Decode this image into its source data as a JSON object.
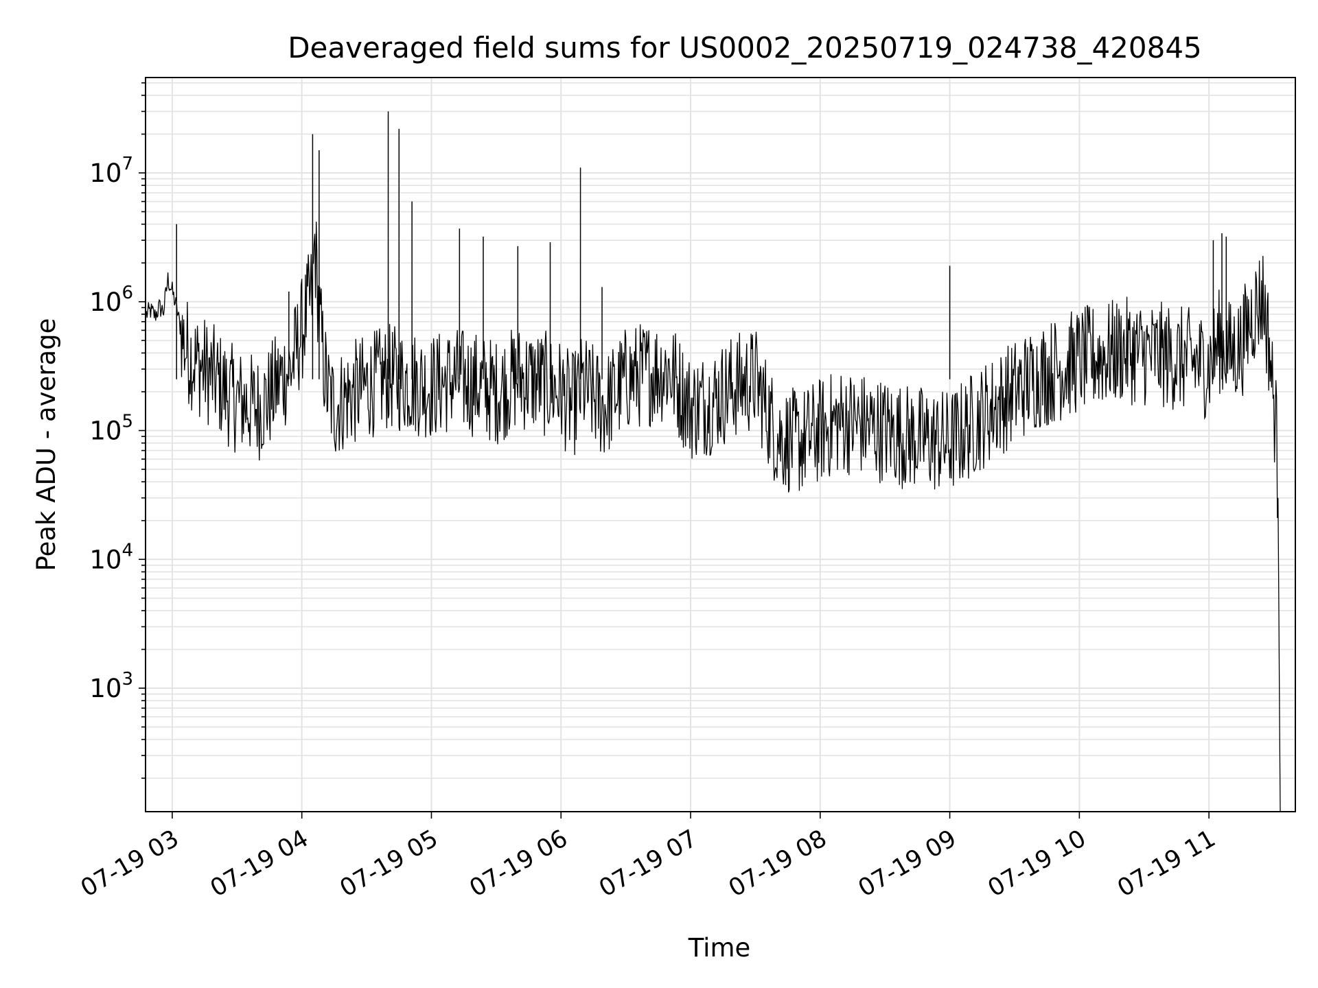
{
  "chart_data": {
    "type": "line",
    "title": "Deaveraged field sums for US0002_20250719_024738_420845",
    "xlabel": "Time",
    "ylabel": "Peak ADU - average",
    "y_scale": "log",
    "xlim": [
      "2025-07-19 02:47:38",
      "2025-07-19 11:40"
    ],
    "ylim": [
      110,
      55000000.0
    ],
    "grid": "major and minor",
    "line_color": "#000000",
    "x_tick_labels": [
      "07-19 03",
      "07-19 04",
      "07-19 05",
      "07-19 06",
      "07-19 07",
      "07-19 08",
      "07-19 09",
      "07-19 10",
      "07-19 11"
    ],
    "y_tick_values": [
      1000,
      10000,
      100000,
      1000000,
      10000000
    ],
    "y_tick_labels": [
      {
        "base": "10",
        "exp": "3"
      },
      {
        "base": "10",
        "exp": "4"
      },
      {
        "base": "10",
        "exp": "5"
      },
      {
        "base": "10",
        "exp": "6"
      },
      {
        "base": "10",
        "exp": "7"
      }
    ],
    "series": [
      {
        "x": [
          "02:48",
          "02:50",
          "02:52",
          "02:54",
          "02:56",
          "02:58",
          "03:00",
          "03:02",
          "03:04",
          "03:06",
          "03:10",
          "03:15",
          "03:20",
          "03:25",
          "03:30",
          "03:35",
          "03:40",
          "03:45",
          "03:50",
          "03:55",
          "04:00",
          "04:03",
          "04:05",
          "04:06",
          "04:07",
          "04:08",
          "04:10",
          "04:12",
          "04:15",
          "04:20",
          "04:30",
          "04:40",
          "04:50",
          "05:00",
          "05:10",
          "05:20",
          "05:30",
          "05:40",
          "05:50",
          "06:00",
          "06:05",
          "06:10",
          "06:20",
          "06:30",
          "06:40",
          "06:50",
          "07:00",
          "07:10",
          "07:20",
          "07:30",
          "07:40",
          "07:50",
          "08:00",
          "08:10",
          "08:20",
          "08:30",
          "08:40",
          "08:50",
          "09:00",
          "09:10",
          "09:20",
          "09:30",
          "09:40",
          "09:50",
          "10:00",
          "10:10",
          "10:20",
          "10:30",
          "10:40",
          "10:50",
          "11:00",
          "11:05",
          "11:10",
          "11:15",
          "11:20",
          "11:25",
          "11:28",
          "11:30",
          "11:31",
          "11:32",
          "11:33"
        ],
        "y": [
          800000,
          850000,
          780000,
          900000,
          850000,
          1500000,
          1200000,
          900000,
          600000,
          450000,
          350000,
          300000,
          250000,
          200000,
          170000,
          160000,
          150000,
          180000,
          250000,
          300000,
          600000,
          900000,
          1200000,
          3000000,
          1500000,
          800000,
          350000,
          200000,
          150000,
          180000,
          220000,
          260000,
          240000,
          220000,
          250000,
          230000,
          200000,
          260000,
          240000,
          200000,
          150000,
          220000,
          150000,
          250000,
          280000,
          300000,
          150000,
          170000,
          220000,
          250000,
          90000,
          80000,
          100000,
          120000,
          110000,
          100000,
          90000,
          85000,
          80000,
          110000,
          150000,
          200000,
          260000,
          300000,
          350000,
          380000,
          420000,
          400000,
          380000,
          350000,
          320000,
          500000,
          400000,
          450000,
          800000,
          1100000,
          450000,
          160000,
          120000,
          30000,
          110
        ]
      }
    ],
    "spikes": [
      {
        "x": "04:05",
        "y": 20000000
      },
      {
        "x": "04:08",
        "y": 15000000
      },
      {
        "x": "04:40",
        "y": 30000000
      },
      {
        "x": "04:45",
        "y": 22000000
      },
      {
        "x": "04:51",
        "y": 6000000
      },
      {
        "x": "05:13",
        "y": 3700000
      },
      {
        "x": "05:24",
        "y": 3200000
      },
      {
        "x": "05:40",
        "y": 2700000
      },
      {
        "x": "05:55",
        "y": 2900000
      },
      {
        "x": "06:09",
        "y": 11000000
      },
      {
        "x": "06:19",
        "y": 1300000
      },
      {
        "x": "09:00",
        "y": 1900000
      },
      {
        "x": "11:02",
        "y": 3000000
      },
      {
        "x": "11:06",
        "y": 3400000
      },
      {
        "x": "11:08",
        "y": 3200000
      },
      {
        "x": "03:02",
        "y": 4000000
      },
      {
        "x": "03:54",
        "y": 1200000
      }
    ]
  }
}
